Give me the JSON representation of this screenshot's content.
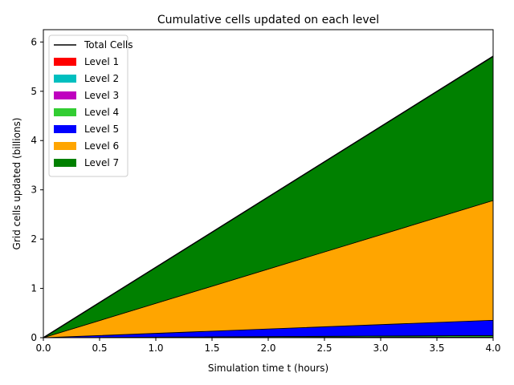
{
  "chart_data": {
    "type": "area",
    "stacked": true,
    "title": "Cumulative cells updated on each level",
    "xlabel": "Simulation time t (hours)",
    "ylabel": "Grid cells updated (billions)",
    "xlim": [
      0,
      4
    ],
    "ylim": [
      0,
      6.25
    ],
    "xticks": [
      "0.0",
      "0.5",
      "1.0",
      "1.5",
      "2.0",
      "2.5",
      "3.0",
      "3.5",
      "4.0"
    ],
    "yticks": [
      "0",
      "1",
      "2",
      "3",
      "4",
      "5",
      "6"
    ],
    "x": [
      0,
      4
    ],
    "series": [
      {
        "name": "Level 1",
        "color": "#ff0000",
        "values": [
          0,
          0.004
        ]
      },
      {
        "name": "Level 2",
        "color": "#00bfbf",
        "values": [
          0,
          0.004
        ]
      },
      {
        "name": "Level 3",
        "color": "#bf00bf",
        "values": [
          0,
          0.006
        ]
      },
      {
        "name": "Level 4",
        "color": "#32cd32",
        "values": [
          0,
          0.03
        ]
      },
      {
        "name": "Level 5",
        "color": "#0000ff",
        "values": [
          0,
          0.31
        ]
      },
      {
        "name": "Level 6",
        "color": "#ffa500",
        "values": [
          0,
          2.43
        ]
      },
      {
        "name": "Level 7",
        "color": "#008000",
        "values": [
          0,
          2.93
        ]
      }
    ],
    "total": {
      "name": "Total Cells",
      "color": "#000000",
      "values": [
        0,
        5.71
      ]
    },
    "legend": "top-left",
    "grid": false
  }
}
